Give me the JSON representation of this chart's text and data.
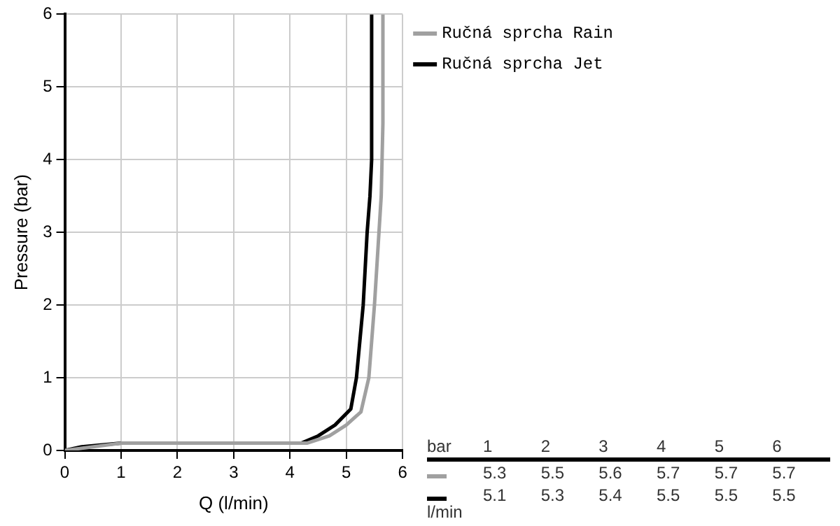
{
  "chart_data": {
    "type": "line",
    "xlabel": "Q (l/min)",
    "ylabel": "Pressure (bar)",
    "xlim": [
      0,
      6
    ],
    "ylim": [
      0,
      6
    ],
    "xticks": [
      0,
      1,
      2,
      3,
      4,
      5,
      6
    ],
    "yticks": [
      0,
      1,
      2,
      3,
      4,
      5,
      6
    ],
    "grid": true,
    "legend": "top right",
    "marker": "none",
    "line_style": "solid",
    "series": [
      {
        "name": "Ručná sprcha Rain",
        "color": "#a0a0a0",
        "x": [
          0,
          1,
          4.3,
          4.7,
          5.0,
          5.26,
          5.4,
          5.5,
          5.58,
          5.62,
          5.65,
          5.65
        ],
        "values": [
          0,
          0.1,
          0.1,
          0.2,
          0.35,
          0.53,
          1,
          2,
          3,
          3.5,
          4.5,
          6
        ]
      },
      {
        "name": "Ručná sprcha Jet",
        "color": "#000000",
        "x": [
          0,
          0.3,
          1,
          4.2,
          4.5,
          4.8,
          5.08,
          5.18,
          5.3,
          5.37,
          5.42,
          5.45,
          5.45
        ],
        "values": [
          0,
          0.05,
          0.1,
          0.1,
          0.2,
          0.35,
          0.57,
          1,
          2,
          3,
          3.5,
          4,
          6
        ]
      }
    ],
    "annotations": [
      "bar",
      "1",
      "2",
      "3",
      "4",
      "5",
      "6",
      "5.3",
      "5.5",
      "5.6",
      "5.7",
      "5.7",
      "5.7",
      "5.1",
      "5.3",
      "5.4",
      "5.5",
      "5.5",
      "5.5",
      "l/min"
    ]
  }
}
